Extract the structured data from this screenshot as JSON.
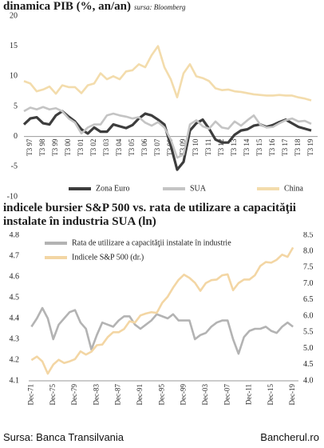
{
  "chart_data": [
    {
      "type": "line",
      "title": "dinamica PIB (%, an/an)",
      "subtitle": "sursa: Bloomberg",
      "x": [
        1997,
        1997.5,
        1998,
        1998.5,
        1999,
        1999.5,
        2000,
        2000.5,
        2001,
        2001.5,
        2002,
        2002.5,
        2003,
        2003.5,
        2004,
        2004.5,
        2005,
        2005.5,
        2006,
        2006.5,
        2007,
        2007.5,
        2008,
        2008.5,
        2009,
        2009.5,
        2010,
        2010.5,
        2011,
        2011.5,
        2012,
        2012.5,
        2013,
        2013.5,
        2014,
        2014.5,
        2015,
        2015.5,
        2016,
        2016.5,
        2017,
        2017.5,
        2018,
        2018.5,
        2019,
        2019.5
      ],
      "xlim": [
        1997,
        2020
      ],
      "xticks": [
        {
          "value": 1997.5,
          "label": "T3 97"
        },
        {
          "value": 1998.5,
          "label": "T3 98"
        },
        {
          "value": 1999.5,
          "label": "T3 99"
        },
        {
          "value": 2000.5,
          "label": "T3 00"
        },
        {
          "value": 2001.5,
          "label": "T3 01"
        },
        {
          "value": 2002.5,
          "label": "T3 02"
        },
        {
          "value": 2003.5,
          "label": "T3 03"
        },
        {
          "value": 2004.5,
          "label": "T3 04"
        },
        {
          "value": 2005.5,
          "label": "T3 05"
        },
        {
          "value": 2006.5,
          "label": "T3 06"
        },
        {
          "value": 2007.5,
          "label": "T3 07"
        },
        {
          "value": 2008.5,
          "label": "T3 08"
        },
        {
          "value": 2009.5,
          "label": "T3 09"
        },
        {
          "value": 2010.5,
          "label": "T3 10"
        },
        {
          "value": 2011.5,
          "label": "T3 11"
        },
        {
          "value": 2012.5,
          "label": "T3 12"
        },
        {
          "value": 2013.5,
          "label": "T3 13"
        },
        {
          "value": 2014.5,
          "label": "T3 14"
        },
        {
          "value": 2015.5,
          "label": "T3 15"
        },
        {
          "value": 2016.5,
          "label": "T3 16"
        },
        {
          "value": 2017.5,
          "label": "T3 17"
        },
        {
          "value": 2018.5,
          "label": "T3 18"
        },
        {
          "value": 2019.5,
          "label": "T3 19"
        }
      ],
      "ylim": [
        -10,
        20
      ],
      "yticks": [
        -10,
        -5,
        0,
        5,
        10,
        15,
        20
      ],
      "legend": "bottom",
      "series": [
        {
          "name": "Zona Euro",
          "color": "#3d3d3d",
          "values": [
            2.0,
            3.0,
            3.2,
            2.2,
            2.0,
            3.5,
            4.2,
            3.3,
            2.5,
            1.2,
            0.5,
            1.5,
            0.8,
            0.8,
            2.0,
            1.7,
            1.4,
            1.9,
            3.0,
            3.8,
            3.5,
            2.8,
            2.0,
            -1.5,
            -5.5,
            -4.2,
            1.0,
            2.2,
            2.8,
            1.3,
            -0.5,
            -1.0,
            -1.0,
            0.3,
            1.0,
            1.2,
            1.8,
            2.0,
            1.6,
            1.9,
            2.4,
            2.8,
            2.2,
            1.6,
            1.3,
            1.0
          ]
        },
        {
          "name": "SUA",
          "color": "#c4c4c4",
          "values": [
            4.2,
            4.8,
            4.5,
            4.9,
            4.5,
            4.7,
            4.2,
            3.0,
            2.3,
            0.5,
            1.5,
            2.0,
            2.0,
            3.5,
            3.8,
            3.5,
            3.3,
            3.0,
            3.2,
            2.3,
            1.8,
            2.4,
            1.5,
            -0.5,
            -3.5,
            -3.0,
            2.0,
            2.7,
            1.7,
            1.3,
            2.5,
            1.5,
            1.3,
            2.5,
            1.8,
            2.7,
            3.5,
            2.0,
            1.5,
            1.6,
            2.2,
            2.7,
            3.0,
            2.5,
            2.6,
            2.1
          ]
        },
        {
          "name": "China",
          "color": "#f3dcac",
          "values": [
            9.2,
            8.8,
            7.5,
            7.8,
            8.3,
            7.1,
            8.5,
            8.2,
            8.2,
            7.2,
            8.5,
            8.8,
            10.5,
            9.5,
            10.0,
            9.5,
            10.8,
            11.0,
            12.0,
            11.5,
            13.5,
            15.0,
            11.5,
            9.5,
            6.5,
            10.5,
            12.0,
            10.0,
            9.7,
            9.2,
            8.0,
            7.7,
            7.8,
            7.5,
            7.4,
            7.2,
            7.0,
            6.9,
            6.8,
            6.8,
            6.9,
            6.8,
            6.8,
            6.5,
            6.3,
            6.0
          ]
        }
      ]
    },
    {
      "type": "line",
      "title": "indicele bursier S&P 500 vs. rata de utilizare a capacităţii instalate în industria SUA (ln)",
      "x": [
        1971,
        1972,
        1973,
        1974,
        1975,
        1976,
        1977,
        1978,
        1979,
        1980,
        1981,
        1982,
        1983,
        1984,
        1985,
        1986,
        1987,
        1988,
        1989,
        1990,
        1991,
        1992,
        1993,
        1994,
        1995,
        1996,
        1997,
        1998,
        1999,
        2000,
        2001,
        2002,
        2003,
        2004,
        2005,
        2006,
        2007,
        2008,
        2009,
        2010,
        2011,
        2012,
        2013,
        2014,
        2015,
        2016,
        2017,
        2018,
        2019
      ],
      "xlim": [
        1970.5,
        2020
      ],
      "xticks": [
        {
          "value": 1971,
          "label": "Dec-71"
        },
        {
          "value": 1975,
          "label": "Dec-75"
        },
        {
          "value": 1979,
          "label": "Dec-79"
        },
        {
          "value": 1983,
          "label": "Dec-83"
        },
        {
          "value": 1987,
          "label": "Dec-87"
        },
        {
          "value": 1991,
          "label": "Dec-91"
        },
        {
          "value": 1995,
          "label": "Dec-95"
        },
        {
          "value": 1999,
          "label": "Dec-99"
        },
        {
          "value": 2003,
          "label": "Dec-03"
        },
        {
          "value": 2007,
          "label": "Dec-07"
        },
        {
          "value": 2011,
          "label": "Dec-11"
        },
        {
          "value": 2015,
          "label": "Dec-15"
        },
        {
          "value": 2019,
          "label": "Dec-19"
        }
      ],
      "ylim": [
        4.1,
        4.8
      ],
      "yticks": [
        4.1,
        4.2,
        4.3,
        4.4,
        4.5,
        4.6,
        4.7,
        4.8
      ],
      "y2lim": [
        4,
        8.5
      ],
      "y2ticks": [
        {
          "value": 4,
          "label": "4.0"
        },
        4.5,
        {
          "value": 5,
          "label": "5.0"
        },
        5.5,
        {
          "value": 6,
          "label": "6.0"
        },
        6.5,
        {
          "value": 7,
          "label": "7.0"
        },
        7.5,
        {
          "value": 8,
          "label": "8.0"
        },
        8.5
      ],
      "legend": "top-left",
      "series": [
        {
          "name": "Rata de utilizare a capacităţii instalate în industrie",
          "color": "#b3b3b3",
          "values": [
            4.36,
            4.4,
            4.45,
            4.4,
            4.3,
            4.37,
            4.4,
            4.43,
            4.44,
            4.38,
            4.35,
            4.25,
            4.32,
            4.38,
            4.37,
            4.36,
            4.39,
            4.41,
            4.41,
            4.37,
            4.35,
            4.37,
            4.39,
            4.42,
            4.41,
            4.4,
            4.42,
            4.39,
            4.39,
            4.39,
            4.3,
            4.32,
            4.33,
            4.36,
            4.38,
            4.39,
            4.39,
            4.3,
            4.23,
            4.31,
            4.34,
            4.35,
            4.35,
            4.36,
            4.34,
            4.33,
            4.36,
            4.38,
            4.36
          ]
        },
        {
          "name": "Indicele S&P 500 (dr.)",
          "color": "#f3d6a4",
          "axis": "y2",
          "values": [
            4.64,
            4.75,
            4.6,
            4.22,
            4.5,
            4.65,
            4.55,
            4.6,
            4.67,
            4.91,
            4.81,
            4.9,
            5.1,
            5.12,
            5.35,
            5.5,
            5.5,
            5.6,
            5.84,
            5.8,
            6.02,
            6.08,
            6.12,
            6.1,
            6.41,
            6.6,
            6.88,
            7.12,
            7.28,
            7.18,
            7.03,
            6.78,
            7.02,
            7.11,
            7.13,
            7.26,
            7.29,
            6.8,
            7.02,
            7.13,
            7.13,
            7.26,
            7.55,
            7.67,
            7.65,
            7.74,
            7.9,
            7.83,
            8.12
          ]
        }
      ]
    }
  ],
  "footer": {
    "source": "Sursa: Banca Transilvania",
    "site": "Bancherul.ro"
  }
}
